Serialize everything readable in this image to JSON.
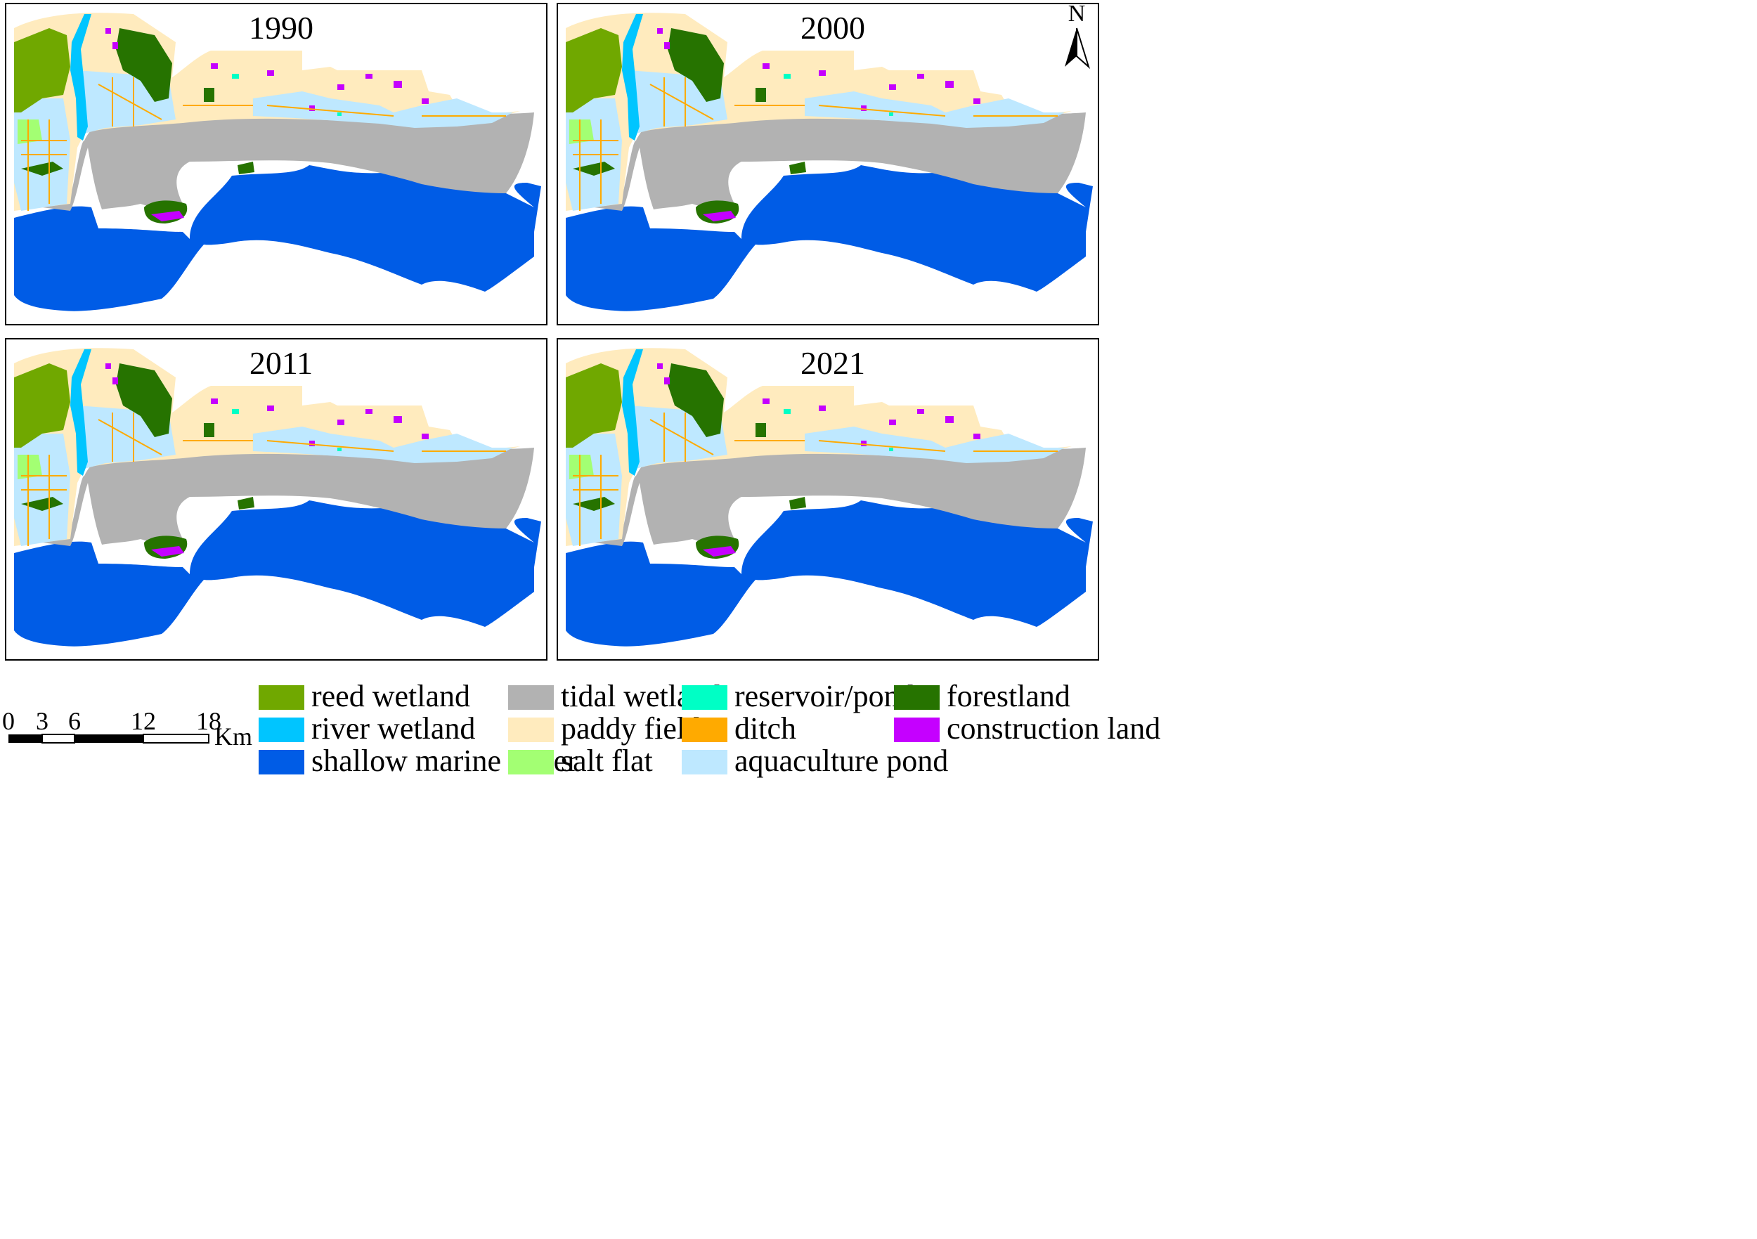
{
  "panels": [
    {
      "year": "1990"
    },
    {
      "year": "2000"
    },
    {
      "year": "2011"
    },
    {
      "year": "2021"
    }
  ],
  "north_arrow": {
    "label": "N"
  },
  "scale_bar": {
    "ticks": [
      "0",
      "3",
      "6",
      "12",
      "18"
    ],
    "unit": "Km"
  },
  "legend": [
    {
      "label": "reed wetland",
      "color": "#70a800"
    },
    {
      "label": "river wetland",
      "color": "#00c5ff"
    },
    {
      "label": "shallow marine water",
      "color": "#005ce6"
    },
    {
      "label": "tidal wetland",
      "color": "#b2b2b2"
    },
    {
      "label": "paddy field",
      "color": "#ffebbe"
    },
    {
      "label": "salt flat",
      "color": "#a3ff73"
    },
    {
      "label": "reservoir/pond",
      "color": "#00ffc5"
    },
    {
      "label": "ditch",
      "color": "#ffaa00"
    },
    {
      "label": "aquaculture pond",
      "color": "#bee8ff"
    },
    {
      "label": "forestland",
      "color": "#267300"
    },
    {
      "label": "construction land",
      "color": "#c500ff"
    }
  ]
}
